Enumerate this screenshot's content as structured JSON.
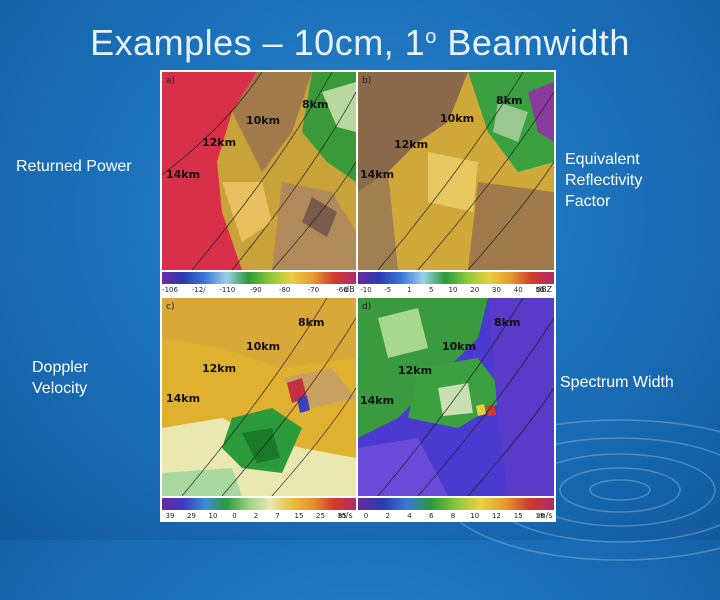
{
  "title": {
    "main": "Examples – 10cm, 1",
    "superscript": "o",
    "tail": " Beamwidth"
  },
  "labels": {
    "returned_power": "Returned Power",
    "doppler_velocity_line1": "Doppler",
    "doppler_velocity_line2": "Velocity",
    "equivalent_line1": "Equivalent",
    "equivalent_line2": "Reflectivity",
    "equivalent_line3": "Factor",
    "spectrum_width": "Spectrum Width"
  },
  "panels": {
    "a": {
      "letter": "a)",
      "ranges": [
        "8km",
        "10km",
        "12km",
        "14km"
      ],
      "unit": "dB",
      "ticks": [
        "-106",
        "-12/",
        "-110",
        "-90",
        "-80",
        "-70",
        "-60"
      ]
    },
    "b": {
      "letter": "b)",
      "ranges": [
        "8km",
        "10km",
        "12km",
        "14km"
      ],
      "unit": "dBZ",
      "ticks": [
        "-10",
        "-5",
        "1",
        "5",
        "10",
        "20",
        "30",
        "40",
        "50"
      ]
    },
    "c": {
      "letter": "c)",
      "ranges": [
        "8km",
        "10km",
        "12km",
        "14km"
      ],
      "unit": "m/s",
      "ticks": [
        "39",
        "29",
        "10",
        "0",
        "2",
        "7",
        "15",
        "25",
        "35"
      ]
    },
    "d": {
      "letter": "d)",
      "ranges": [
        "8km",
        "10km",
        "12km",
        "14km"
      ],
      "unit": "m/s",
      "ticks": [
        "0",
        "2",
        "4",
        "6",
        "8",
        "10",
        "12",
        "15",
        "18"
      ]
    }
  }
}
